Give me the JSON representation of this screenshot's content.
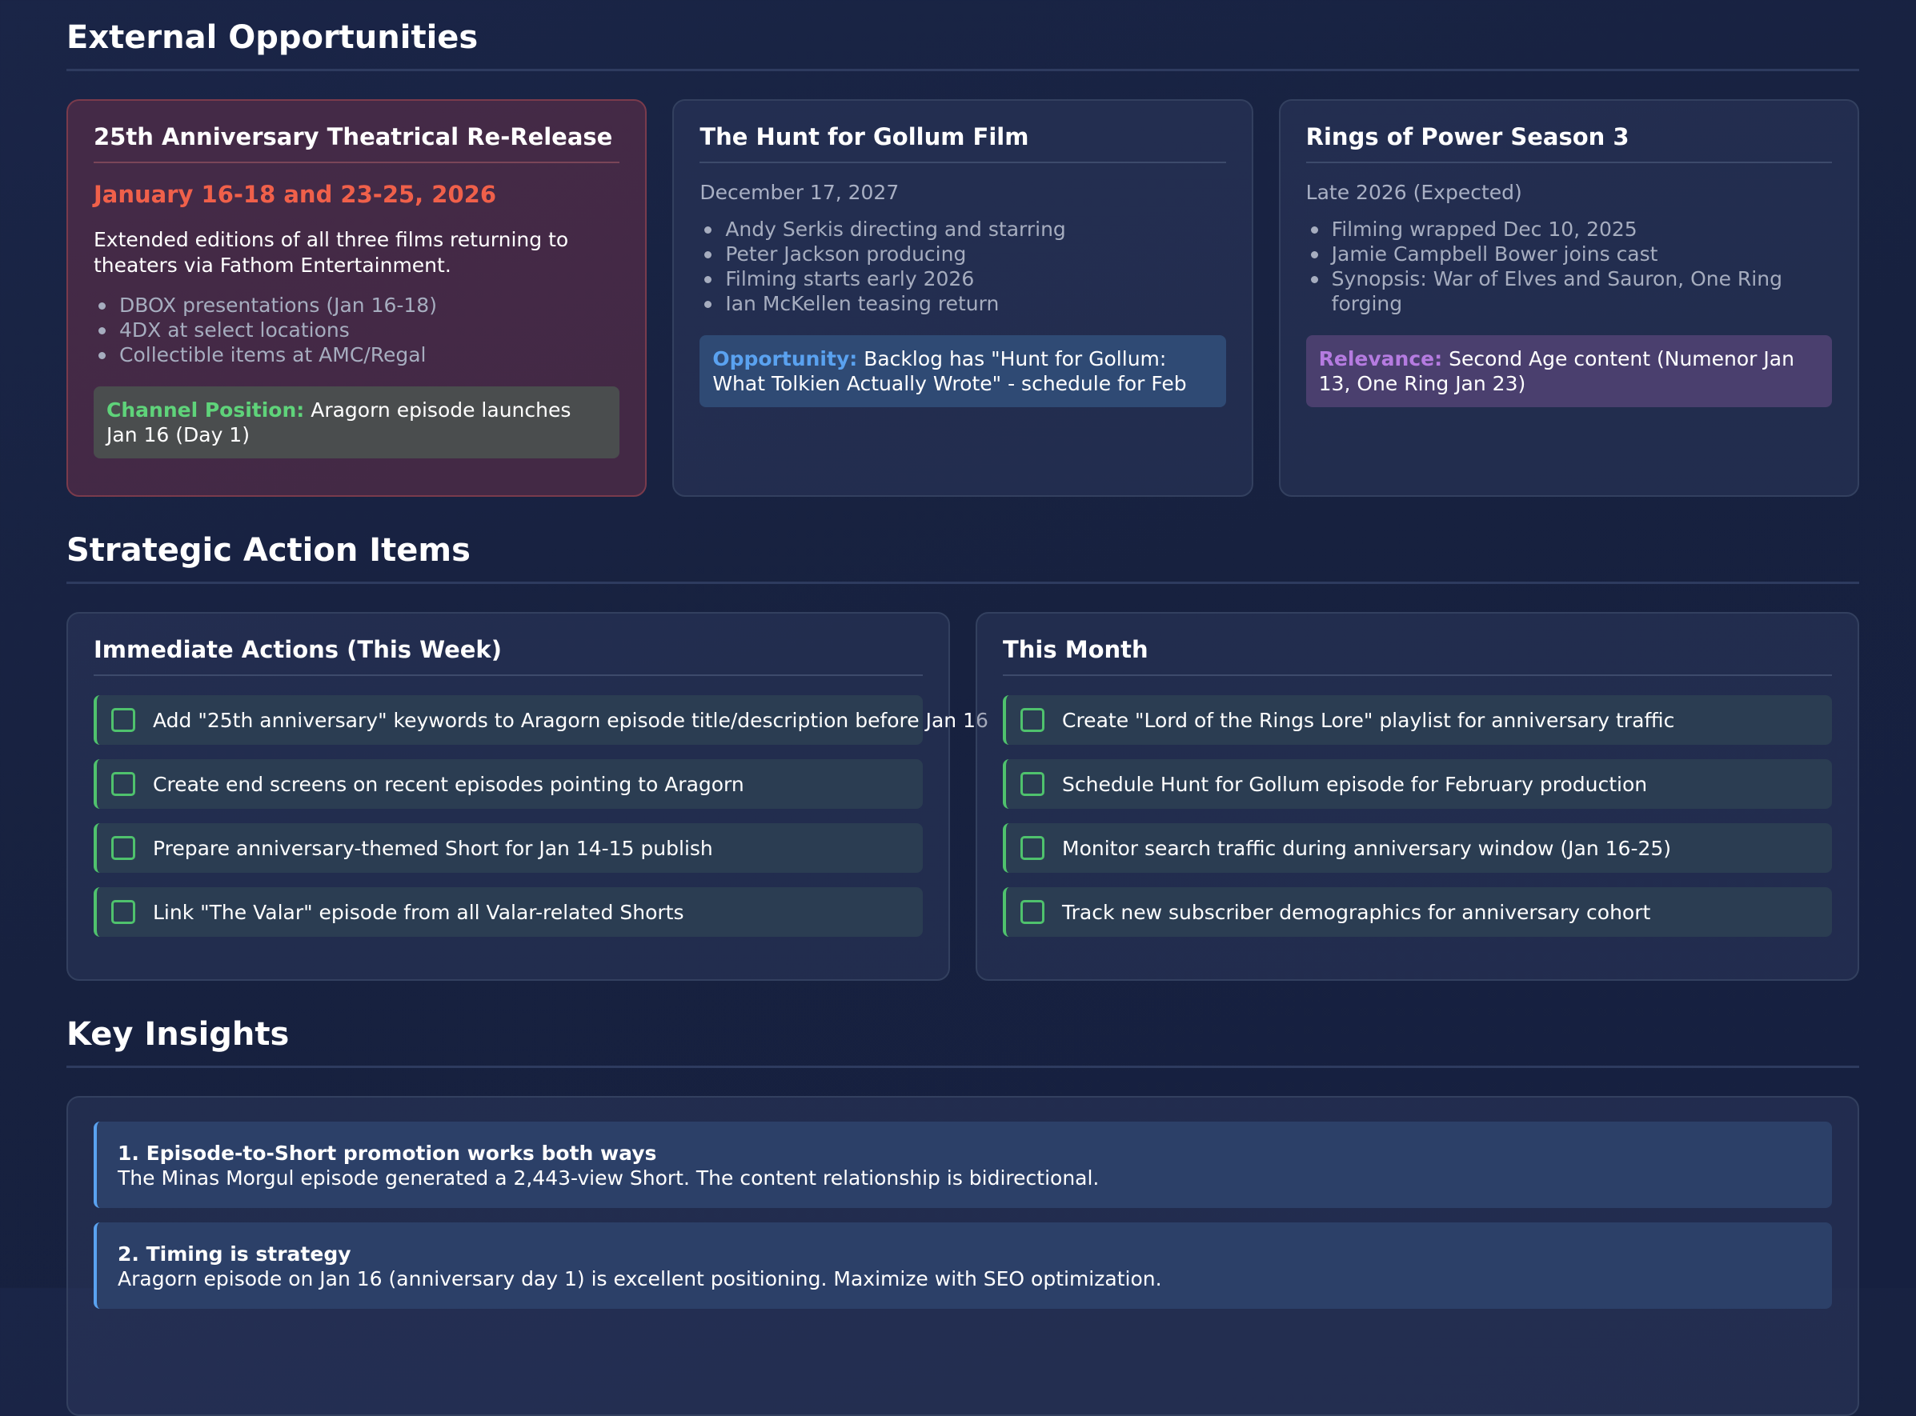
{
  "external": {
    "title": "External Opportunities",
    "cards": [
      {
        "title": "25th Anniversary Theatrical Re-Release",
        "date": "January 16-18 and 23-25, 2026",
        "description": "Extended editions of all three films returning to theaters via Fathom Entertainment.",
        "bullets": [
          "DBOX presentations (Jan 16-18)",
          "4DX at select locations",
          "Collectible items at AMC/Regal"
        ],
        "callout_label": "Channel Position:",
        "callout_text": " Aragorn episode launches Jan 16 (Day 1)"
      },
      {
        "title": "The Hunt for Gollum Film",
        "date": "December 17, 2027",
        "bullets": [
          "Andy Serkis directing and starring",
          "Peter Jackson producing",
          "Filming starts early 2026",
          "Ian McKellen teasing return"
        ],
        "callout_label": "Opportunity:",
        "callout_text": " Backlog has \"Hunt for Gollum: What Tolkien Actually Wrote\" - schedule for Feb"
      },
      {
        "title": "Rings of Power Season 3",
        "date": "Late 2026 (Expected)",
        "bullets": [
          "Filming wrapped Dec 10, 2025",
          "Jamie Campbell Bower joins cast",
          "Synopsis: War of Elves and Sauron, One Ring forging"
        ],
        "callout_label": "Relevance:",
        "callout_text": " Second Age content (Numenor Jan 13, One Ring Jan 23)"
      }
    ]
  },
  "actions": {
    "title": "Strategic Action Items",
    "immediate": {
      "title": "Immediate Actions (This Week)",
      "items": [
        "Add \"25th anniversary\" keywords to Aragorn episode title/description before Jan 16",
        "Create end screens on recent episodes pointing to Aragorn",
        "Prepare anniversary-themed Short for Jan 14-15 publish",
        "Link \"The Valar\" episode from all Valar-related Shorts"
      ]
    },
    "month": {
      "title": "This Month",
      "items": [
        "Create \"Lord of the Rings Lore\" playlist for anniversary traffic",
        "Schedule Hunt for Gollum episode for February production",
        "Monitor search traffic during anniversary window (Jan 16-25)",
        "Track new subscriber demographics for anniversary cohort"
      ]
    }
  },
  "insights": {
    "title": "Key Insights",
    "items": [
      {
        "title": "1. Episode-to-Short promotion works both ways",
        "body": "The Minas Morgul episode generated a 2,443-view Short. The content relationship is bidirectional."
      },
      {
        "title": "2. Timing is strategy",
        "body": "Aragorn episode on Jan 16 (anniversary day 1) is excellent positioning. Maximize with SEO optimization."
      }
    ]
  },
  "colors": {
    "background": "#17213f",
    "accent_red": "#f0604a",
    "accent_green": "#4fc26d",
    "accent_blue": "#5aa2f0",
    "accent_purple": "#b57be0"
  }
}
